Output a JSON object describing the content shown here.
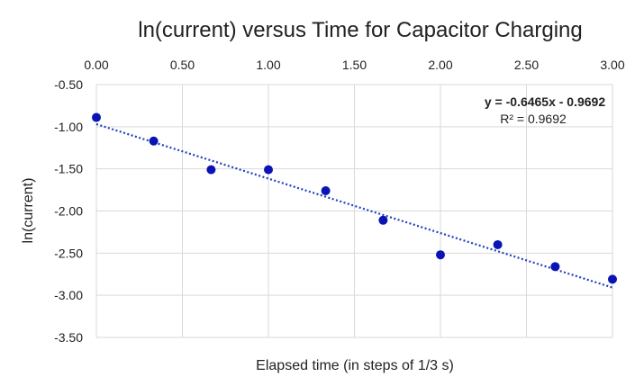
{
  "chart_data": {
    "type": "scatter",
    "title": "ln(current) versus Time for Capacitor Charging",
    "xlabel": "Elapsed time (in steps of 1/3 s)",
    "ylabel": "ln(current)",
    "xlim": [
      0,
      3
    ],
    "ylim": [
      -3.5,
      -0.5
    ],
    "xticks": [
      "0.00",
      "0.50",
      "1.00",
      "1.50",
      "2.00",
      "2.50",
      "3.00"
    ],
    "yticks": [
      "-0.50",
      "-1.00",
      "-1.50",
      "-2.00",
      "-2.50",
      "-3.00",
      "-3.50"
    ],
    "grid": true,
    "series": [
      {
        "name": "ln(current)",
        "color": "#0a14b4",
        "x": [
          0,
          0.333,
          0.667,
          1.0,
          1.333,
          1.667,
          2.0,
          2.333,
          2.667,
          3.0
        ],
        "y": [
          -0.89,
          -1.17,
          -1.51,
          -1.51,
          -1.76,
          -2.11,
          -2.52,
          -2.4,
          -2.66,
          -2.81
        ]
      }
    ],
    "trendline": {
      "type": "linear",
      "slope": -0.6465,
      "intercept": -0.9692,
      "equation": "y = -0.6465x - 0.9692",
      "r2_label": "R² = 0.9692",
      "color": "#1f3fbf"
    }
  }
}
